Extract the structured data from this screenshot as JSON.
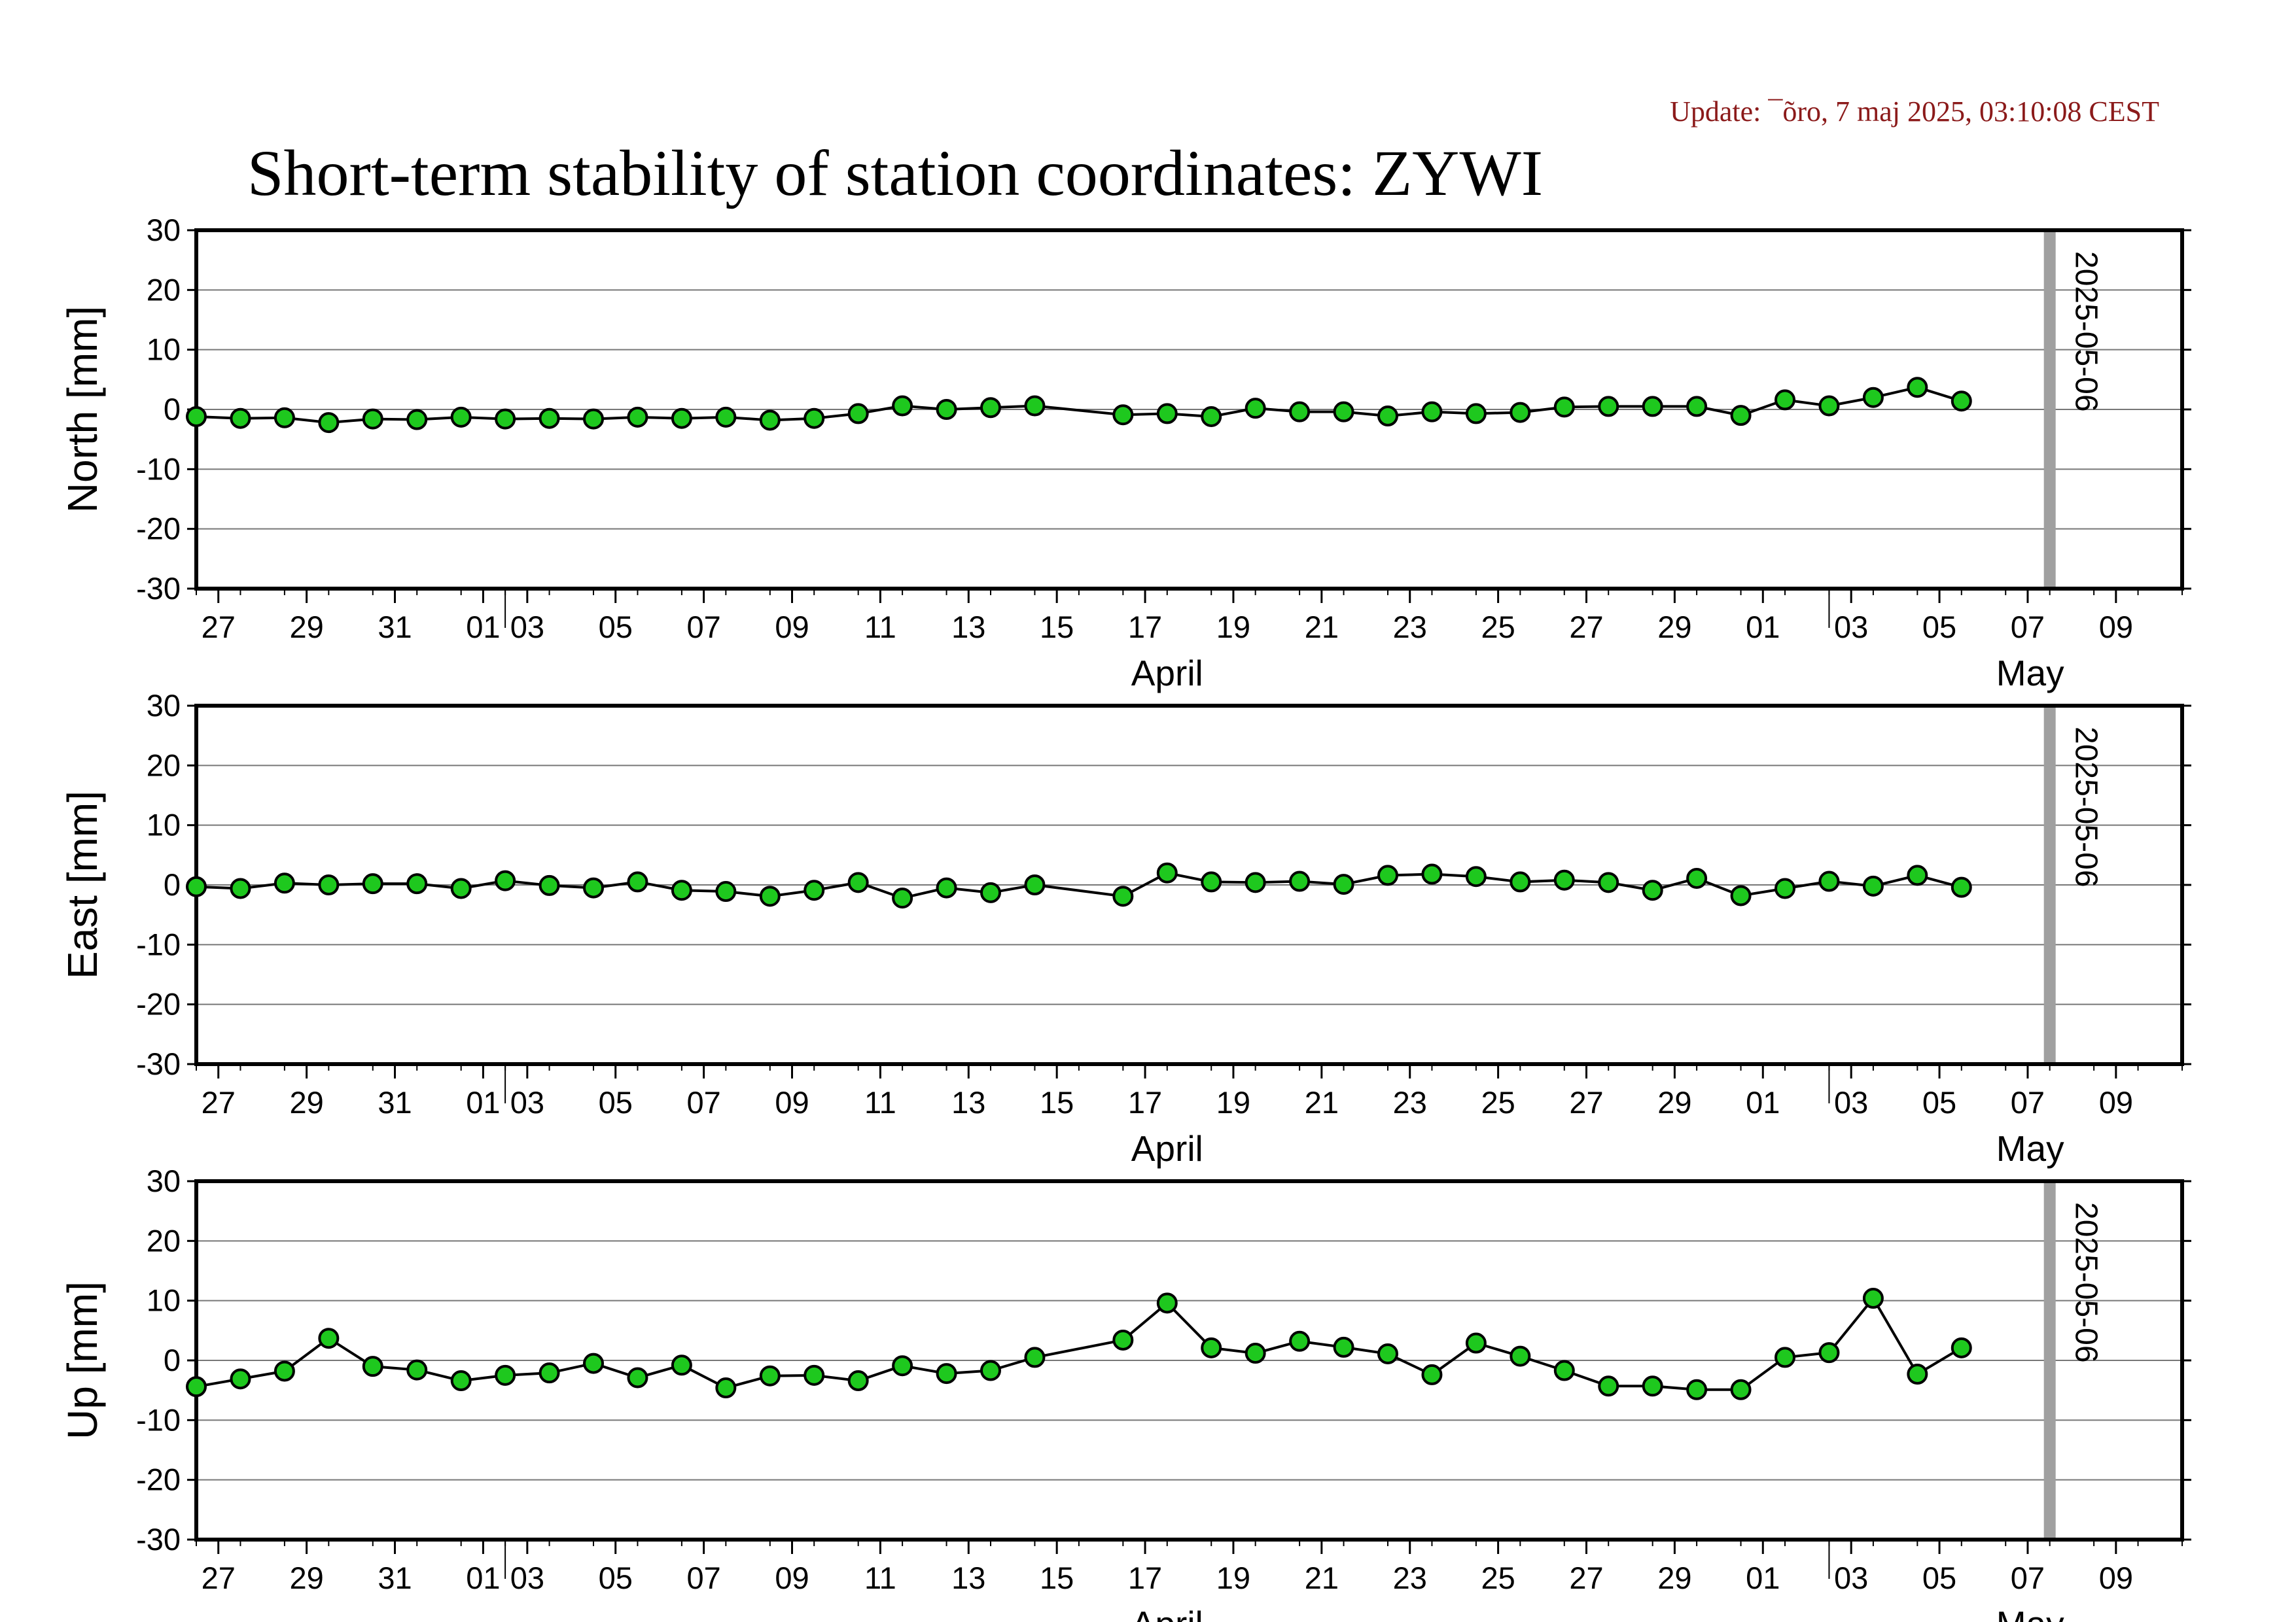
{
  "header": {
    "update_text": "Update: ¯õro, 7 maj 2025, 03:10:08 CEST",
    "title": "Short-term stability of station coordinates: ZYWI"
  },
  "colors": {
    "marker_fill": "#1ec81e",
    "marker_stroke": "#000000",
    "line": "#000000",
    "grid": "#777777",
    "marker_band": "#a0a0a0",
    "update_text": "#8b1a1a"
  },
  "chart_data": [
    {
      "type": "line",
      "ylabel": "North [mm]",
      "ylim": [
        -30,
        30
      ],
      "yticks": [
        30,
        20,
        10,
        0,
        -10,
        -20,
        -30
      ],
      "xlim": [
        "2025-03-25",
        "2025-05-09"
      ],
      "x_tick_labels": [
        "27",
        "29",
        "31",
        "01",
        "03",
        "05",
        "07",
        "09",
        "11",
        "13",
        "15",
        "17",
        "19",
        "21",
        "23",
        "25",
        "27",
        "29",
        "01",
        "03",
        "05",
        "07",
        "09"
      ],
      "month_labels": [
        "April",
        "May"
      ],
      "grid": "horizontal",
      "vertical_marker": {
        "x": "2025-05-06",
        "label": "2025-05-06"
      },
      "x": [
        "2025-03-25",
        "2025-03-26",
        "2025-03-27",
        "2025-03-28",
        "2025-03-29",
        "2025-03-30",
        "2025-03-31",
        "2025-04-01",
        "2025-04-02",
        "2025-04-03",
        "2025-04-04",
        "2025-04-05",
        "2025-04-06",
        "2025-04-07",
        "2025-04-08",
        "2025-04-09",
        "2025-04-10",
        "2025-04-11",
        "2025-04-12",
        "2025-04-13",
        "2025-04-15",
        "2025-04-16",
        "2025-04-17",
        "2025-04-18",
        "2025-04-19",
        "2025-04-20",
        "2025-04-21",
        "2025-04-22",
        "2025-04-23",
        "2025-04-24",
        "2025-04-25",
        "2025-04-26",
        "2025-04-27",
        "2025-04-28",
        "2025-04-29",
        "2025-04-30",
        "2025-05-01",
        "2025-05-02",
        "2025-05-03",
        "2025-05-04"
      ],
      "values": [
        -1.2,
        -1.5,
        -1.4,
        -2.2,
        -1.6,
        -1.7,
        -1.3,
        -1.6,
        -1.5,
        -1.6,
        -1.3,
        -1.5,
        -1.3,
        -1.8,
        -1.5,
        -0.7,
        0.6,
        0.0,
        0.3,
        0.6,
        -0.9,
        -0.7,
        -1.2,
        0.2,
        -0.4,
        -0.4,
        -1.1,
        -0.4,
        -0.7,
        -0.5,
        0.4,
        0.5,
        0.5,
        0.5,
        -1.0,
        1.6,
        0.6,
        2.0,
        3.7,
        1.4
      ]
    },
    {
      "type": "line",
      "ylabel": "East [mm]",
      "ylim": [
        -30,
        30
      ],
      "yticks": [
        30,
        20,
        10,
        0,
        -10,
        -20,
        -30
      ],
      "xlim": [
        "2025-03-25",
        "2025-05-09"
      ],
      "x_tick_labels": [
        "27",
        "29",
        "31",
        "01",
        "03",
        "05",
        "07",
        "09",
        "11",
        "13",
        "15",
        "17",
        "19",
        "21",
        "23",
        "25",
        "27",
        "29",
        "01",
        "03",
        "05",
        "07",
        "09"
      ],
      "month_labels": [
        "April",
        "May"
      ],
      "grid": "horizontal",
      "vertical_marker": {
        "x": "2025-05-06",
        "label": "2025-05-06"
      },
      "x": [
        "2025-03-25",
        "2025-03-26",
        "2025-03-27",
        "2025-03-28",
        "2025-03-29",
        "2025-03-30",
        "2025-03-31",
        "2025-04-01",
        "2025-04-02",
        "2025-04-03",
        "2025-04-04",
        "2025-04-05",
        "2025-04-06",
        "2025-04-07",
        "2025-04-08",
        "2025-04-09",
        "2025-04-10",
        "2025-04-11",
        "2025-04-12",
        "2025-04-13",
        "2025-04-15",
        "2025-04-16",
        "2025-04-17",
        "2025-04-18",
        "2025-04-19",
        "2025-04-20",
        "2025-04-21",
        "2025-04-22",
        "2025-04-23",
        "2025-04-24",
        "2025-04-25",
        "2025-04-26",
        "2025-04-27",
        "2025-04-28",
        "2025-04-29",
        "2025-04-30",
        "2025-05-01",
        "2025-05-02",
        "2025-05-03",
        "2025-05-04"
      ],
      "values": [
        -0.3,
        -0.6,
        0.3,
        0.0,
        0.2,
        0.2,
        -0.6,
        0.7,
        -0.1,
        -0.5,
        0.5,
        -0.9,
        -1.1,
        -1.9,
        -0.9,
        0.4,
        -2.2,
        -0.5,
        -1.3,
        0.0,
        -1.9,
        2.0,
        0.5,
        0.4,
        0.6,
        0.1,
        1.6,
        1.8,
        1.4,
        0.5,
        0.8,
        0.4,
        -0.9,
        1.1,
        -1.8,
        -0.6,
        0.6,
        -0.2,
        1.6,
        -0.4
      ]
    },
    {
      "type": "line",
      "ylabel": "Up [mm]",
      "ylim": [
        -30,
        30
      ],
      "yticks": [
        30,
        20,
        10,
        0,
        -10,
        -20,
        -30
      ],
      "xlim": [
        "2025-03-25",
        "2025-05-09"
      ],
      "x_tick_labels": [
        "27",
        "29",
        "31",
        "01",
        "03",
        "05",
        "07",
        "09",
        "11",
        "13",
        "15",
        "17",
        "19",
        "21",
        "23",
        "25",
        "27",
        "29",
        "01",
        "03",
        "05",
        "07",
        "09"
      ],
      "month_labels": [
        "April",
        "May"
      ],
      "grid": "horizontal",
      "vertical_marker": {
        "x": "2025-05-06",
        "label": "2025-05-06"
      },
      "x": [
        "2025-03-25",
        "2025-03-26",
        "2025-03-27",
        "2025-03-28",
        "2025-03-29",
        "2025-03-30",
        "2025-03-31",
        "2025-04-01",
        "2025-04-02",
        "2025-04-03",
        "2025-04-04",
        "2025-04-05",
        "2025-04-06",
        "2025-04-07",
        "2025-04-08",
        "2025-04-09",
        "2025-04-10",
        "2025-04-11",
        "2025-04-12",
        "2025-04-13",
        "2025-04-15",
        "2025-04-16",
        "2025-04-17",
        "2025-04-18",
        "2025-04-19",
        "2025-04-20",
        "2025-04-21",
        "2025-04-22",
        "2025-04-23",
        "2025-04-24",
        "2025-04-25",
        "2025-04-26",
        "2025-04-27",
        "2025-04-28",
        "2025-04-29",
        "2025-04-30",
        "2025-05-01",
        "2025-05-02",
        "2025-05-03",
        "2025-05-04"
      ],
      "values": [
        -4.4,
        -3.1,
        -1.8,
        3.7,
        -1.0,
        -1.6,
        -3.4,
        -2.5,
        -2.1,
        -0.5,
        -2.9,
        -0.8,
        -4.6,
        -2.6,
        -2.5,
        -3.4,
        -0.9,
        -2.2,
        -1.7,
        0.5,
        3.4,
        9.6,
        2.1,
        1.2,
        3.2,
        2.2,
        1.1,
        -2.4,
        2.9,
        0.7,
        -1.7,
        -4.3,
        -4.3,
        -4.9,
        -4.9,
        0.5,
        1.3,
        10.4,
        -2.3,
        2.1
      ]
    }
  ]
}
